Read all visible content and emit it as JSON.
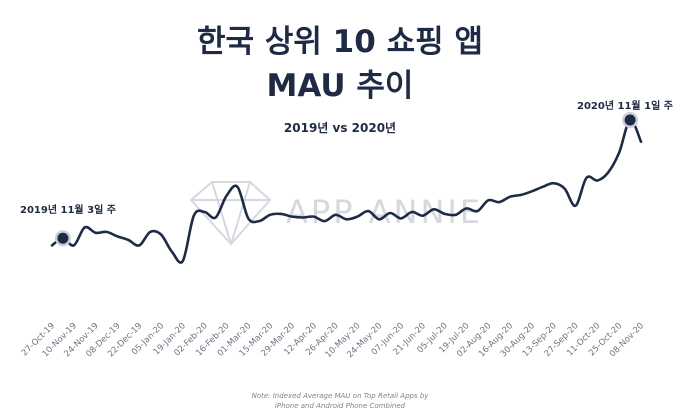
{
  "title_line1": "한국 상위 10 쇼핑 앱",
  "title_line2": "MAU 추이",
  "subtitle": "2019년 vs 2020년",
  "annotations": {
    "left": "2019년 11월 3일 주",
    "right": "2020년 11월 1일 주"
  },
  "watermark": "APP ANNIE",
  "footnote_line1": "Note: Indexed Average MAU on Top Retail Apps by",
  "footnote_line2": "iPhone and Android Phone Combined",
  "colors": {
    "line": "#1f2a44",
    "marker": "#1f2a44",
    "tick": "#6b7280"
  },
  "chart_data": {
    "type": "line",
    "title": "한국 상위 10 쇼핑 앱 MAU 추이",
    "subtitle": "2019년 vs 2020년",
    "xlabel": "",
    "ylabel": "",
    "grid": false,
    "x_ticks": [
      "27-Oct-19",
      "10-Nov-19",
      "24-Nov-19",
      "08-Dec-19",
      "22-Dec-19",
      "05-Jan-20",
      "19-Jan-20",
      "02-Feb-20",
      "16-Feb-20",
      "01-Mar-20",
      "15-Mar-20",
      "29-Mar-20",
      "12-Apr-20",
      "26-Apr-20",
      "10-May-20",
      "24-May-20",
      "07-Jun-20",
      "21-Jun-20",
      "05-Jul-20",
      "19-Jul-20",
      "02-Aug-20",
      "16-Aug-20",
      "30-Aug-20",
      "13-Sep-20",
      "27-Sep-20",
      "11-Oct-20",
      "25-Oct-20",
      "08-Nov-20"
    ],
    "weeks": [
      "27-Oct-19",
      "03-Nov-19",
      "10-Nov-19",
      "17-Nov-19",
      "24-Nov-19",
      "01-Dec-19",
      "08-Dec-19",
      "15-Dec-19",
      "22-Dec-19",
      "29-Dec-19",
      "05-Jan-20",
      "12-Jan-20",
      "19-Jan-20",
      "26-Jan-20",
      "02-Feb-20",
      "09-Feb-20",
      "16-Feb-20",
      "23-Feb-20",
      "01-Mar-20",
      "08-Mar-20",
      "15-Mar-20",
      "22-Mar-20",
      "29-Mar-20",
      "05-Apr-20",
      "12-Apr-20",
      "19-Apr-20",
      "26-Apr-20",
      "03-May-20",
      "10-May-20",
      "17-May-20",
      "24-May-20",
      "31-May-20",
      "07-Jun-20",
      "14-Jun-20",
      "21-Jun-20",
      "28-Jun-20",
      "05-Jul-20",
      "12-Jul-20",
      "19-Jul-20",
      "26-Jul-20",
      "02-Aug-20",
      "09-Aug-20",
      "16-Aug-20",
      "23-Aug-20",
      "30-Aug-20",
      "06-Sep-20",
      "13-Sep-20",
      "20-Sep-20",
      "27-Sep-20",
      "04-Oct-20",
      "11-Oct-20",
      "18-Oct-20",
      "25-Oct-20",
      "01-Nov-20",
      "08-Nov-20"
    ],
    "values": [
      25,
      33,
      25,
      45,
      39,
      40,
      35,
      31,
      25,
      40,
      37,
      18,
      8,
      58,
      62,
      56,
      80,
      90,
      55,
      52,
      59,
      60,
      57,
      56,
      57,
      52,
      59,
      54,
      57,
      63,
      54,
      61,
      55,
      62,
      58,
      65,
      60,
      59,
      66,
      63,
      75,
      73,
      79,
      81,
      85,
      90,
      94,
      88,
      69,
      100,
      97,
      106,
      128,
      164,
      140
    ],
    "highlight": [
      {
        "week": "03-Nov-19",
        "label": "2019년 11월 3일 주"
      },
      {
        "week": "01-Nov-20",
        "label": "2020년 11월 1일 주"
      }
    ]
  }
}
